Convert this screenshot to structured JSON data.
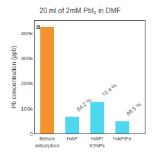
{
  "chart_data": {
    "type": "bar",
    "title": "20 ml of 2mM PbI₂ in DMF",
    "y_label": "Pb concentration (ppb)",
    "categories": [
      "Before\nadsorption",
      "HAP",
      "HAP/\nIONPs",
      "HAP/Fe"
    ],
    "values": [
      425000,
      67000,
      126000,
      49000
    ],
    "colors": [
      "#F5922E",
      "#4DD8EE",
      "#4DD8EE",
      "#4DD8EE"
    ],
    "ylim": [
      0,
      450000
    ],
    "yticks": [
      0,
      {
        "value": 100000,
        "label": "100k"
      },
      {
        "value": 200000,
        "label": "200k"
      },
      {
        "value": 300000,
        "label": "300k"
      },
      {
        "value": 400000,
        "label": "400k"
      }
    ],
    "grid": false,
    "annotations": [
      {
        "text": "a"
      },
      {
        "category": "HAP",
        "text": "84.2 %"
      },
      {
        "category": "HAP/\nIONPs",
        "text": "70.4 %"
      },
      {
        "category": "HAP/Fe",
        "text": "88.5 %"
      }
    ]
  }
}
